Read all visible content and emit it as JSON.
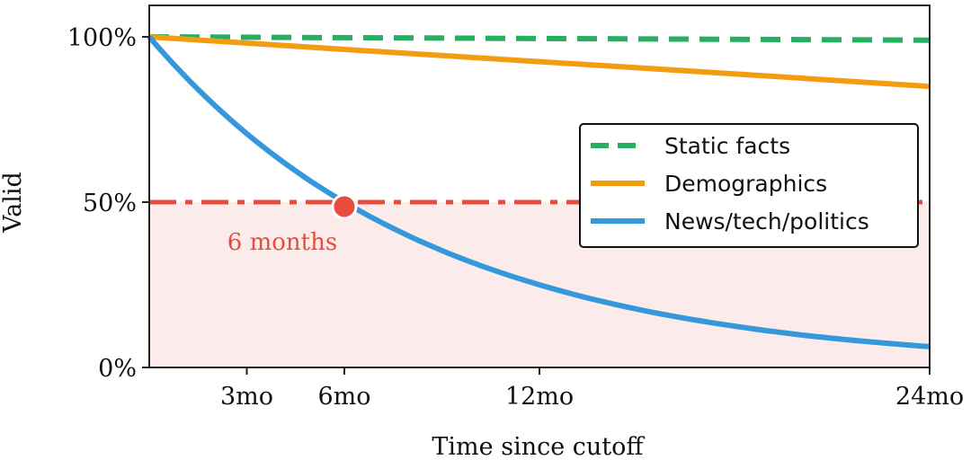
{
  "chart_data": {
    "type": "line",
    "xlabel": "Time since cutoff",
    "ylabel": "Valid",
    "xlim": [
      0,
      24
    ],
    "ylim": [
      0,
      100
    ],
    "x_ticks": [
      {
        "value": 3,
        "label": "3mo"
      },
      {
        "value": 6,
        "label": "6mo"
      },
      {
        "value": 12,
        "label": "12mo"
      },
      {
        "value": 24,
        "label": "24mo"
      }
    ],
    "y_ticks": [
      {
        "value": 0,
        "label": "0%"
      },
      {
        "value": 50,
        "label": "50%"
      },
      {
        "value": 100,
        "label": "100%"
      }
    ],
    "grid": false,
    "legend_position": "right",
    "series": [
      {
        "name": "Static facts",
        "color": "#27ae60",
        "style": "dashed",
        "x": [
          0,
          24
        ],
        "y": [
          100,
          99
        ]
      },
      {
        "name": "Demographics",
        "color": "#f39c12",
        "style": "solid",
        "x": [
          0,
          6,
          12,
          18,
          24
        ],
        "y": [
          100,
          96.2,
          92.5,
          88.8,
          85
        ]
      },
      {
        "name": "News/tech/politics",
        "color": "#3498db",
        "style": "solid",
        "x": [
          0,
          1,
          2,
          3,
          4,
          5,
          6,
          8,
          10,
          12,
          14,
          16,
          18,
          20,
          22,
          24
        ],
        "y": [
          100,
          89.1,
          79.4,
          70.7,
          63.0,
          56.1,
          50.0,
          39.7,
          31.5,
          25.0,
          19.8,
          15.7,
          12.5,
          9.9,
          7.9,
          6.3
        ]
      }
    ],
    "threshold": {
      "y": 50,
      "color": "#e74c3c",
      "style": "dashdot",
      "shade_below": true
    },
    "marker": {
      "x": 6,
      "y": 50,
      "color": "#e74c3c"
    },
    "annotation": {
      "text": "6 months",
      "x": 6,
      "y": 50,
      "color": "#e74c3c"
    }
  }
}
